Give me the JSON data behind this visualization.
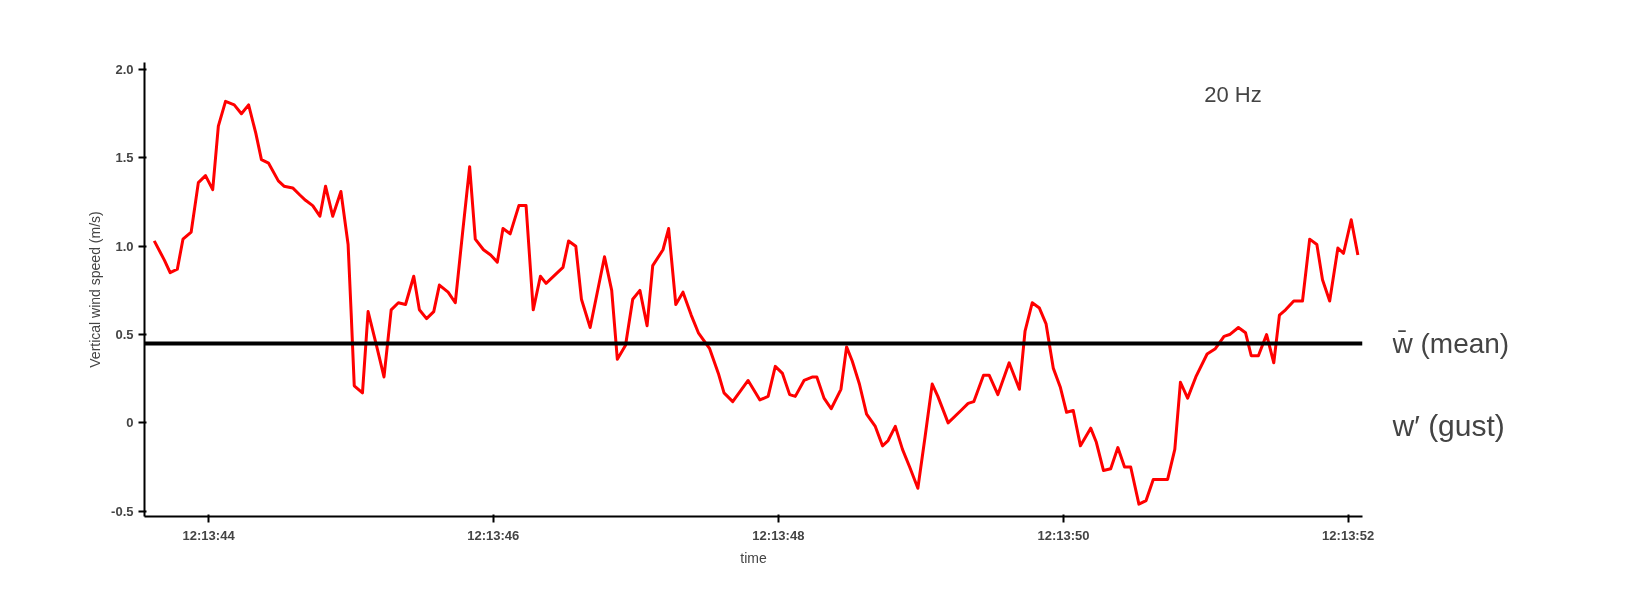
{
  "chart_data": {
    "type": "line",
    "xlabel": "time",
    "ylabel": "Vertical wind speed (m/s)",
    "xlim": [
      12.228764,
      12.231139
    ],
    "ylim": [
      -0.53,
      2.04
    ],
    "xticks": [
      {
        "value": 12.228889,
        "label": "12:13:44"
      },
      {
        "value": 12.229444,
        "label": "12:13:46"
      },
      {
        "value": 12.23,
        "label": "12:13:48"
      },
      {
        "value": 12.230556,
        "label": "12:13:50"
      },
      {
        "value": 12.231111,
        "label": "12:13:52"
      }
    ],
    "yticks": [
      {
        "value": -0.5,
        "label": "-0.5"
      },
      0,
      {
        "value": 0.5,
        "label": "0.5"
      },
      {
        "value": 1,
        "label": "1.0"
      },
      {
        "value": 1.5,
        "label": "1.5"
      },
      {
        "value": 2,
        "label": "2.0"
      }
    ],
    "grid": false,
    "marker": "none",
    "line_style": "solid",
    "series": [
      {
        "color": "#ff0000",
        "x": [
          12.228783,
          12.228803,
          12.228814,
          12.228828,
          12.228839,
          12.228855,
          12.228869,
          12.228883,
          12.228897,
          12.228908,
          12.228922,
          12.228939,
          12.228953,
          12.228967,
          12.228981,
          12.228992,
          12.229006,
          12.229025,
          12.229036,
          12.229053,
          12.229067,
          12.229078,
          12.229092,
          12.229106,
          12.229117,
          12.229131,
          12.229147,
          12.229161,
          12.229167,
          12.229173,
          12.229189,
          12.2292,
          12.229217,
          12.229231,
          12.229245,
          12.229259,
          12.229273,
          12.229289,
          12.2293,
          12.229314,
          12.229328,
          12.229339,
          12.229356,
          12.22937,
          12.229384,
          12.229398,
          12.229409,
          12.229425,
          12.229439,
          12.229452,
          12.229463,
          12.229477,
          12.229494,
          12.229508,
          12.229522,
          12.229536,
          12.229547,
          12.22958,
          12.229591,
          12.229605,
          12.229616,
          12.229633,
          12.229661,
          12.229675,
          12.229686,
          12.229702,
          12.229716,
          12.22973,
          12.229744,
          12.229755,
          12.229775,
          12.229786,
          12.2298,
          12.229814,
          12.22983,
          12.229844,
          12.229866,
          12.229883,
          12.229894,
          12.229911,
          12.229941,
          12.229964,
          12.22998,
          12.229994,
          12.230008,
          12.230022,
          12.230033,
          12.23005,
          12.230067,
          12.230075,
          12.230089,
          12.230103,
          12.230122,
          12.230133,
          12.230144,
          12.230158,
          12.230172,
          12.230189,
          12.230203,
          12.230214,
          12.230228,
          12.230242,
          12.230256,
          12.230272,
          12.230286,
          12.2303,
          12.230311,
          12.230331,
          12.230356,
          12.23037,
          12.230381,
          12.2304,
          12.230411,
          12.230428,
          12.23045,
          12.23047,
          12.230481,
          12.230495,
          12.230509,
          12.230522,
          12.230536,
          12.23055,
          12.230562,
          12.230575,
          12.230589,
          12.230609,
          12.23062,
          12.230634,
          12.230648,
          12.230662,
          12.230675,
          12.230687,
          12.230703,
          12.230717,
          12.230731,
          12.230759,
          12.230773,
          12.230784,
          12.230798,
          12.230814,
          12.230836,
          12.230852,
          12.230869,
          12.23088,
          12.230897,
          12.230911,
          12.230922,
          12.230936,
          12.230952,
          12.230966,
          12.230977,
          12.230989,
          12.231005,
          12.231022,
          12.231036,
          12.23105,
          12.231061,
          12.231075,
          12.231091,
          12.231102,
          12.231117,
          12.23113
        ],
        "values": [
          1.03,
          0.92,
          0.85,
          0.87,
          1.04,
          1.08,
          1.36,
          1.4,
          1.32,
          1.68,
          1.82,
          1.8,
          1.75,
          1.8,
          1.64,
          1.49,
          1.47,
          1.37,
          1.34,
          1.33,
          1.29,
          1.26,
          1.23,
          1.17,
          1.34,
          1.17,
          1.31,
          1.01,
          0.62,
          0.21,
          0.17,
          0.63,
          0.43,
          0.26,
          0.64,
          0.68,
          0.67,
          0.83,
          0.64,
          0.59,
          0.63,
          0.78,
          0.74,
          0.68,
          1.07,
          1.45,
          1.04,
          0.98,
          0.95,
          0.91,
          1.1,
          1.07,
          1.23,
          1.23,
          0.64,
          0.83,
          0.79,
          0.88,
          1.03,
          1.0,
          0.7,
          0.54,
          0.94,
          0.75,
          0.36,
          0.44,
          0.7,
          0.75,
          0.55,
          0.89,
          0.98,
          1.1,
          0.67,
          0.74,
          0.61,
          0.51,
          0.42,
          0.28,
          0.17,
          0.12,
          0.24,
          0.13,
          0.15,
          0.32,
          0.28,
          0.16,
          0.15,
          0.24,
          0.26,
          0.26,
          0.14,
          0.08,
          0.19,
          0.43,
          0.35,
          0.22,
          0.05,
          -0.02,
          -0.13,
          -0.1,
          -0.02,
          -0.15,
          -0.25,
          -0.37,
          -0.08,
          0.22,
          0.15,
          0.0,
          0.07,
          0.11,
          0.12,
          0.27,
          0.27,
          0.16,
          0.34,
          0.19,
          0.52,
          0.68,
          0.65,
          0.56,
          0.31,
          0.2,
          0.06,
          0.07,
          -0.13,
          -0.03,
          -0.11,
          -0.27,
          -0.26,
          -0.14,
          -0.25,
          -0.25,
          -0.46,
          -0.44,
          -0.32,
          -0.32,
          -0.15,
          0.23,
          0.14,
          0.26,
          0.39,
          0.42,
          0.49,
          0.5,
          0.54,
          0.51,
          0.38,
          0.38,
          0.5,
          0.34,
          0.61,
          0.64,
          0.69,
          0.69,
          1.04,
          1.01,
          0.81,
          0.69,
          0.99,
          0.96,
          1.15,
          0.95
        ]
      }
    ],
    "ref_lines": [
      {
        "axis": "y",
        "value": 0.45,
        "label": "w̄ (mean)",
        "color": "#000000"
      }
    ],
    "annotations": [
      "20 Hz",
      "w′ (gust)"
    ]
  }
}
